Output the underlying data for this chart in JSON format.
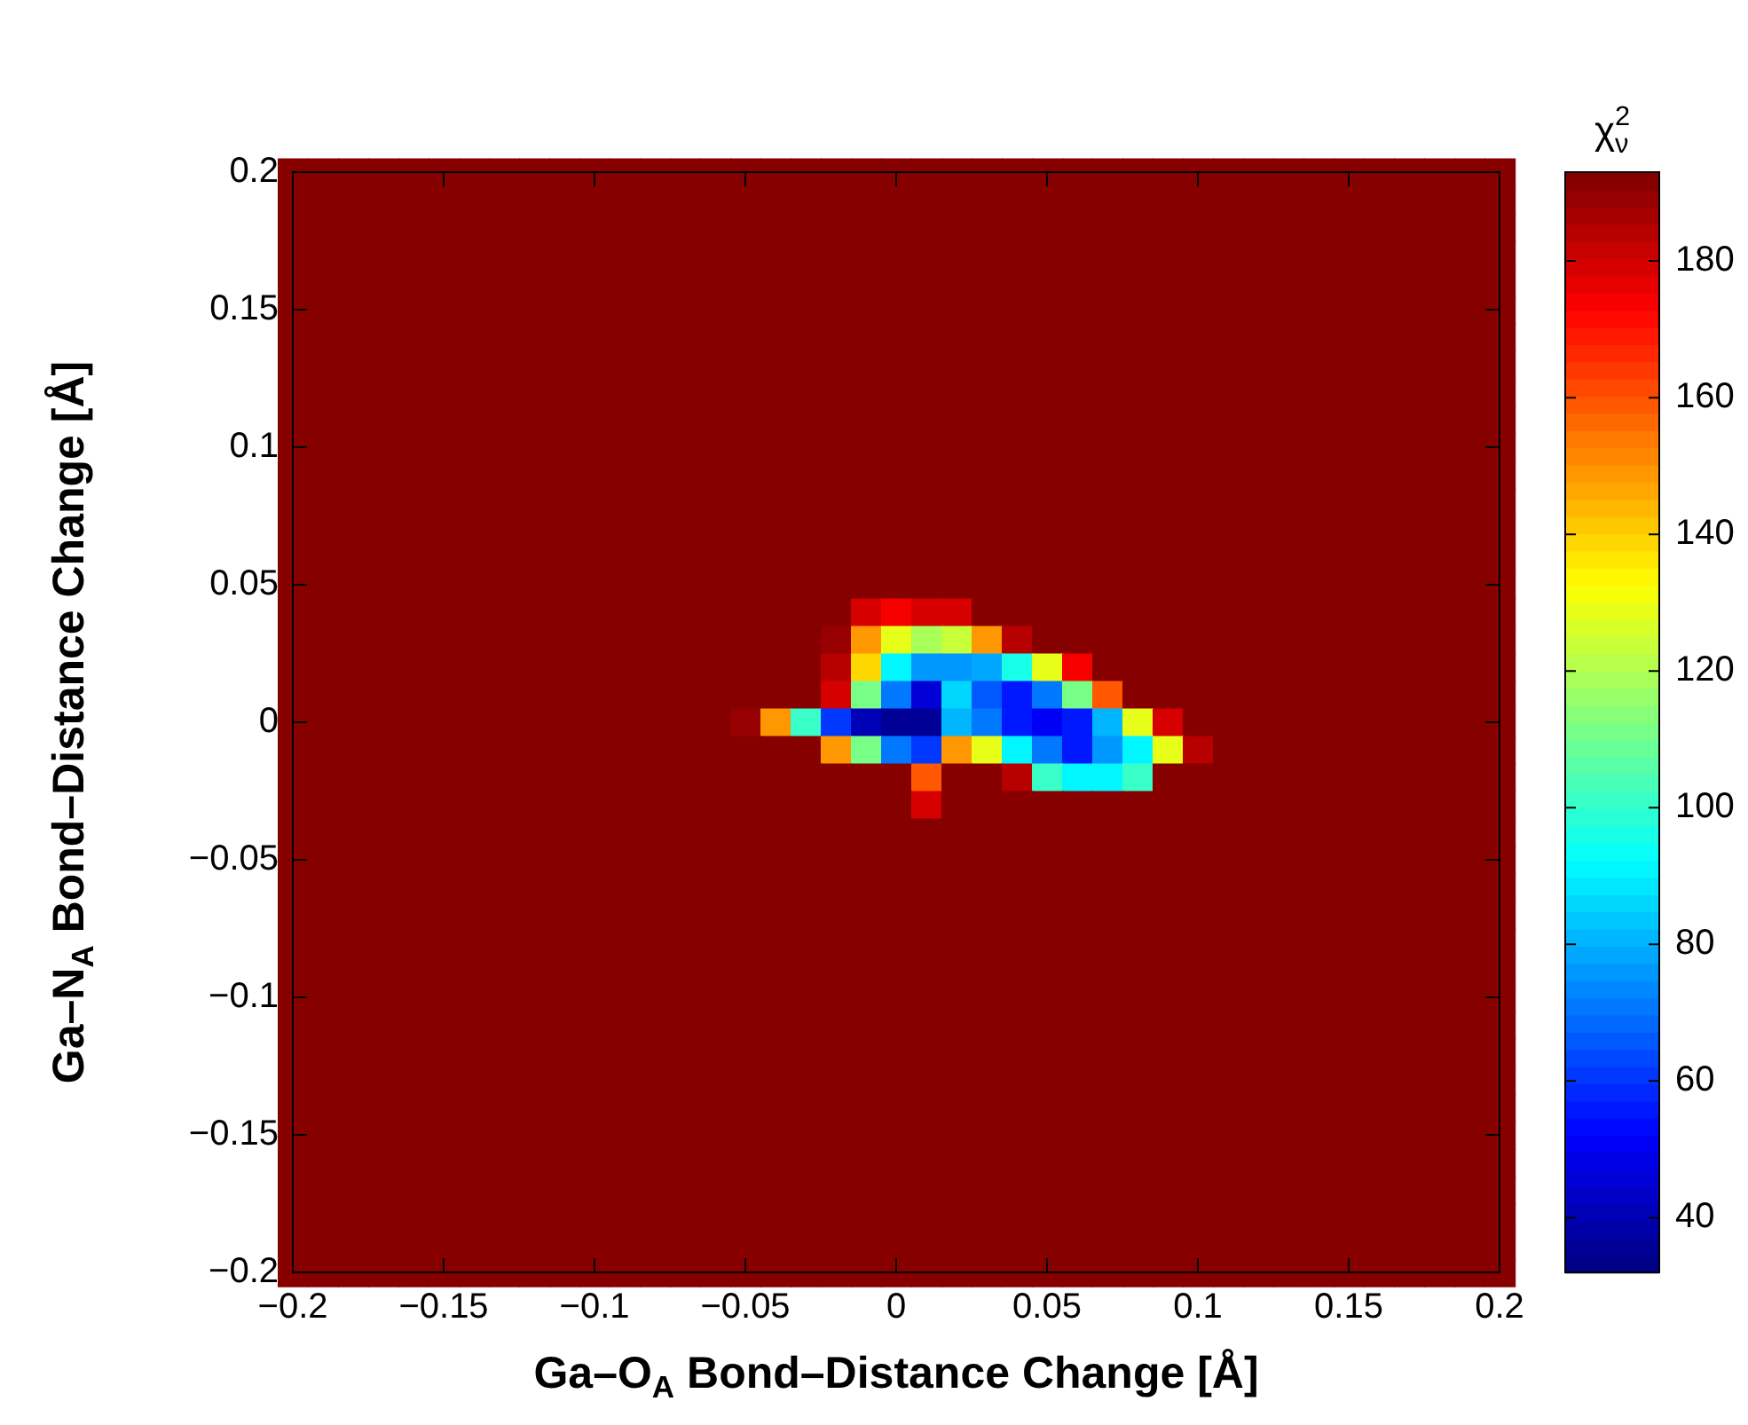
{
  "chart_data": {
    "type": "heatmap",
    "xlabel": "Ga–O$_{A}$ Bond–Distance Change [Å]",
    "ylabel": "Ga–N$_{A}$ Bond–Distance Change [Å]",
    "clabel": "χ$^{2}$$_{ν}$",
    "x": [
      -0.2,
      -0.19,
      -0.18,
      -0.17,
      -0.16,
      -0.15,
      -0.14,
      -0.13,
      -0.12,
      -0.11,
      -0.1,
      -0.09,
      -0.08,
      -0.07,
      -0.06,
      -0.05,
      -0.04,
      -0.03,
      -0.02,
      -0.01,
      0,
      0.01,
      0.02,
      0.03,
      0.04,
      0.05,
      0.06,
      0.07,
      0.08,
      0.09,
      0.1,
      0.11,
      0.12,
      0.13,
      0.14,
      0.15,
      0.16,
      0.17,
      0.18,
      0.19,
      0.2
    ],
    "y": [
      0.2,
      0.19,
      0.18,
      0.17,
      0.16,
      0.15,
      0.14,
      0.13,
      0.12,
      0.11,
      0.1,
      0.09,
      0.08,
      0.07,
      0.06,
      0.05,
      0.04,
      0.03,
      0.02,
      0.01,
      0,
      -0.01,
      -0.02,
      -0.03,
      -0.04,
      -0.05,
      -0.06,
      -0.07,
      -0.08,
      -0.09,
      -0.1,
      -0.11,
      -0.12,
      -0.13,
      -0.14,
      -0.15,
      -0.16,
      -0.17,
      -0.18,
      -0.19,
      -0.2
    ],
    "xlim": [
      -0.2,
      0.2
    ],
    "ylim": [
      -0.2,
      0.2
    ],
    "xticks": [
      {
        "value": -0.2,
        "label": "−0.2"
      },
      {
        "value": -0.15,
        "label": "−0.15"
      },
      {
        "value": -0.1,
        "label": "−0.1"
      },
      {
        "value": -0.05,
        "label": "−0.05"
      },
      0,
      0.05,
      0.1,
      0.15,
      0.2
    ],
    "yticks": [
      {
        "value": -0.2,
        "label": "−0.2"
      },
      {
        "value": -0.15,
        "label": "−0.15"
      },
      {
        "value": -0.1,
        "label": "−0.1"
      },
      {
        "value": -0.05,
        "label": "−0.05"
      },
      0,
      0.05,
      0.1,
      0.15,
      0.2
    ],
    "clim": [
      32,
      193
    ],
    "cticks": [
      40,
      60,
      80,
      100,
      120,
      140,
      160,
      180
    ],
    "cells": [
      [
        193,
        193,
        193,
        193,
        193,
        193,
        193,
        193,
        193,
        193,
        193,
        193,
        193,
        193,
        193,
        193,
        193,
        193,
        193,
        193,
        193,
        193,
        193,
        193,
        193,
        193,
        193,
        193,
        193,
        193,
        193,
        193,
        193,
        193,
        193,
        193,
        193,
        193,
        193,
        193,
        193
      ],
      [
        193,
        193,
        193,
        193,
        193,
        193,
        193,
        193,
        193,
        193,
        193,
        193,
        193,
        193,
        193,
        193,
        193,
        193,
        193,
        193,
        193,
        193,
        193,
        193,
        193,
        193,
        193,
        193,
        193,
        193,
        193,
        193,
        193,
        193,
        193,
        193,
        193,
        193,
        193,
        193,
        193
      ],
      [
        193,
        193,
        193,
        193,
        193,
        193,
        193,
        193,
        193,
        193,
        193,
        193,
        193,
        193,
        193,
        193,
        193,
        193,
        193,
        193,
        193,
        193,
        193,
        193,
        193,
        193,
        193,
        193,
        193,
        193,
        193,
        193,
        193,
        193,
        193,
        193,
        193,
        193,
        193,
        193,
        193
      ],
      [
        193,
        193,
        193,
        193,
        193,
        193,
        193,
        193,
        193,
        193,
        193,
        193,
        193,
        193,
        193,
        193,
        193,
        193,
        193,
        193,
        193,
        193,
        193,
        193,
        193,
        193,
        193,
        193,
        193,
        193,
        193,
        193,
        193,
        193,
        193,
        193,
        193,
        193,
        193,
        193,
        193
      ],
      [
        193,
        193,
        193,
        193,
        193,
        193,
        193,
        193,
        193,
        193,
        193,
        193,
        193,
        193,
        193,
        193,
        193,
        193,
        193,
        193,
        193,
        193,
        193,
        193,
        193,
        193,
        193,
        193,
        193,
        193,
        193,
        193,
        193,
        193,
        193,
        193,
        193,
        193,
        193,
        193,
        193
      ],
      [
        193,
        193,
        193,
        193,
        193,
        193,
        193,
        193,
        193,
        193,
        193,
        193,
        193,
        193,
        193,
        193,
        193,
        193,
        193,
        193,
        193,
        193,
        193,
        193,
        193,
        193,
        193,
        193,
        193,
        193,
        193,
        193,
        193,
        193,
        193,
        193,
        193,
        193,
        193,
        193,
        193
      ],
      [
        193,
        193,
        193,
        193,
        193,
        193,
        193,
        193,
        193,
        193,
        193,
        193,
        193,
        193,
        193,
        193,
        193,
        193,
        193,
        193,
        193,
        193,
        193,
        193,
        193,
        193,
        193,
        193,
        193,
        193,
        193,
        193,
        193,
        193,
        193,
        193,
        193,
        193,
        193,
        193,
        193
      ],
      [
        193,
        193,
        193,
        193,
        193,
        193,
        193,
        193,
        193,
        193,
        193,
        193,
        193,
        193,
        193,
        193,
        193,
        193,
        193,
        193,
        193,
        193,
        193,
        193,
        193,
        193,
        193,
        193,
        193,
        193,
        193,
        193,
        193,
        193,
        193,
        193,
        193,
        193,
        193,
        193,
        193
      ],
      [
        193,
        193,
        193,
        193,
        193,
        193,
        193,
        193,
        193,
        193,
        193,
        193,
        193,
        193,
        193,
        193,
        193,
        193,
        193,
        193,
        193,
        193,
        193,
        193,
        193,
        193,
        193,
        193,
        193,
        193,
        193,
        193,
        193,
        193,
        193,
        193,
        193,
        193,
        193,
        193,
        193
      ],
      [
        193,
        193,
        193,
        193,
        193,
        193,
        193,
        193,
        193,
        193,
        193,
        193,
        193,
        193,
        193,
        193,
        193,
        193,
        193,
        193,
        193,
        193,
        193,
        193,
        193,
        193,
        193,
        193,
        193,
        193,
        193,
        193,
        193,
        193,
        193,
        193,
        193,
        193,
        193,
        193,
        193
      ],
      [
        193,
        193,
        193,
        193,
        193,
        193,
        193,
        193,
        193,
        193,
        193,
        193,
        193,
        193,
        193,
        193,
        193,
        193,
        193,
        193,
        193,
        193,
        193,
        193,
        193,
        193,
        193,
        193,
        193,
        193,
        193,
        193,
        193,
        193,
        193,
        193,
        193,
        193,
        193,
        193,
        193
      ],
      [
        193,
        193,
        193,
        193,
        193,
        193,
        193,
        193,
        193,
        193,
        193,
        193,
        193,
        193,
        193,
        193,
        193,
        193,
        193,
        193,
        193,
        193,
        193,
        193,
        193,
        193,
        193,
        193,
        193,
        193,
        193,
        193,
        193,
        193,
        193,
        193,
        193,
        193,
        193,
        193,
        193
      ],
      [
        193,
        193,
        193,
        193,
        193,
        193,
        193,
        193,
        193,
        193,
        193,
        193,
        193,
        193,
        193,
        193,
        193,
        193,
        193,
        193,
        193,
        193,
        193,
        193,
        193,
        193,
        193,
        193,
        193,
        193,
        193,
        193,
        193,
        193,
        193,
        193,
        193,
        193,
        193,
        193,
        193
      ],
      [
        193,
        193,
        193,
        193,
        193,
        193,
        193,
        193,
        193,
        193,
        193,
        193,
        193,
        193,
        193,
        193,
        193,
        193,
        193,
        193,
        193,
        193,
        193,
        193,
        193,
        193,
        193,
        193,
        193,
        193,
        193,
        193,
        193,
        193,
        193,
        193,
        193,
        193,
        193,
        193,
        193
      ],
      [
        193,
        193,
        193,
        193,
        193,
        193,
        193,
        193,
        193,
        193,
        193,
        193,
        193,
        193,
        193,
        193,
        193,
        193,
        193,
        193,
        193,
        193,
        193,
        193,
        193,
        193,
        193,
        193,
        193,
        193,
        193,
        193,
        193,
        193,
        193,
        193,
        193,
        193,
        193,
        193,
        193
      ],
      [
        193,
        193,
        193,
        193,
        193,
        193,
        193,
        193,
        193,
        193,
        193,
        193,
        193,
        193,
        193,
        193,
        193,
        193,
        193,
        193,
        193,
        193,
        193,
        193,
        193,
        193,
        193,
        193,
        193,
        193,
        193,
        193,
        193,
        193,
        193,
        193,
        193,
        193,
        193,
        193,
        193
      ],
      [
        193,
        193,
        193,
        193,
        193,
        193,
        193,
        193,
        193,
        193,
        193,
        193,
        193,
        193,
        193,
        193,
        193,
        193,
        193,
        180,
        175,
        178,
        180,
        193,
        193,
        193,
        193,
        193,
        193,
        193,
        193,
        193,
        193,
        193,
        193,
        193,
        193,
        193,
        193,
        193,
        193
      ],
      [
        193,
        193,
        193,
        193,
        193,
        193,
        193,
        193,
        193,
        193,
        193,
        193,
        193,
        193,
        193,
        193,
        193,
        193,
        190,
        150,
        130,
        120,
        125,
        150,
        185,
        193,
        193,
        193,
        193,
        193,
        193,
        193,
        193,
        193,
        193,
        193,
        193,
        193,
        193,
        193,
        193
      ],
      [
        193,
        193,
        193,
        193,
        193,
        193,
        193,
        193,
        193,
        193,
        193,
        193,
        193,
        193,
        193,
        193,
        193,
        193,
        185,
        140,
        90,
        75,
        75,
        78,
        95,
        130,
        175,
        193,
        193,
        193,
        193,
        193,
        193,
        193,
        193,
        193,
        193,
        193,
        193,
        193,
        193
      ],
      [
        193,
        193,
        193,
        193,
        193,
        193,
        193,
        193,
        193,
        193,
        193,
        193,
        193,
        193,
        193,
        193,
        193,
        193,
        180,
        110,
        70,
        45,
        85,
        65,
        55,
        70,
        110,
        160,
        193,
        193,
        193,
        193,
        193,
        193,
        193,
        193,
        193,
        193,
        193,
        193,
        193
      ],
      [
        193,
        193,
        193,
        193,
        193,
        193,
        193,
        193,
        193,
        193,
        193,
        193,
        193,
        193,
        193,
        190,
        150,
        100,
        60,
        40,
        35,
        35,
        80,
        70,
        55,
        50,
        55,
        80,
        130,
        180,
        193,
        193,
        193,
        193,
        193,
        193,
        193,
        193,
        193,
        193,
        193
      ],
      [
        193,
        193,
        193,
        193,
        193,
        193,
        193,
        193,
        193,
        193,
        193,
        193,
        193,
        193,
        193,
        193,
        193,
        193,
        150,
        110,
        70,
        60,
        150,
        130,
        90,
        70,
        55,
        75,
        90,
        130,
        185,
        193,
        193,
        193,
        193,
        193,
        193,
        193,
        193,
        193,
        193
      ],
      [
        193,
        193,
        193,
        193,
        193,
        193,
        193,
        193,
        193,
        193,
        193,
        193,
        193,
        193,
        193,
        193,
        193,
        193,
        193,
        193,
        193,
        160,
        193,
        193,
        185,
        100,
        90,
        90,
        100,
        193,
        193,
        193,
        193,
        193,
        193,
        193,
        193,
        193,
        193,
        193,
        193
      ],
      [
        193,
        193,
        193,
        193,
        193,
        193,
        193,
        193,
        193,
        193,
        193,
        193,
        193,
        193,
        193,
        193,
        193,
        193,
        193,
        193,
        193,
        180,
        193,
        193,
        193,
        193,
        193,
        193,
        193,
        193,
        193,
        193,
        193,
        193,
        193,
        193,
        193,
        193,
        193,
        193,
        193
      ],
      [
        193,
        193,
        193,
        193,
        193,
        193,
        193,
        193,
        193,
        193,
        193,
        193,
        193,
        193,
        193,
        193,
        193,
        193,
        193,
        193,
        193,
        193,
        193,
        193,
        193,
        193,
        193,
        193,
        193,
        193,
        193,
        193,
        193,
        193,
        193,
        193,
        193,
        193,
        193,
        193,
        193
      ],
      [
        193,
        193,
        193,
        193,
        193,
        193,
        193,
        193,
        193,
        193,
        193,
        193,
        193,
        193,
        193,
        193,
        193,
        193,
        193,
        193,
        193,
        193,
        193,
        193,
        193,
        193,
        193,
        193,
        193,
        193,
        193,
        193,
        193,
        193,
        193,
        193,
        193,
        193,
        193,
        193,
        193
      ],
      [
        193,
        193,
        193,
        193,
        193,
        193,
        193,
        193,
        193,
        193,
        193,
        193,
        193,
        193,
        193,
        193,
        193,
        193,
        193,
        193,
        193,
        193,
        193,
        193,
        193,
        193,
        193,
        193,
        193,
        193,
        193,
        193,
        193,
        193,
        193,
        193,
        193,
        193,
        193,
        193,
        193
      ],
      [
        193,
        193,
        193,
        193,
        193,
        193,
        193,
        193,
        193,
        193,
        193,
        193,
        193,
        193,
        193,
        193,
        193,
        193,
        193,
        193,
        193,
        193,
        193,
        193,
        193,
        193,
        193,
        193,
        193,
        193,
        193,
        193,
        193,
        193,
        193,
        193,
        193,
        193,
        193,
        193,
        193
      ],
      [
        193,
        193,
        193,
        193,
        193,
        193,
        193,
        193,
        193,
        193,
        193,
        193,
        193,
        193,
        193,
        193,
        193,
        193,
        193,
        193,
        193,
        193,
        193,
        193,
        193,
        193,
        193,
        193,
        193,
        193,
        193,
        193,
        193,
        193,
        193,
        193,
        193,
        193,
        193,
        193,
        193
      ],
      [
        193,
        193,
        193,
        193,
        193,
        193,
        193,
        193,
        193,
        193,
        193,
        193,
        193,
        193,
        193,
        193,
        193,
        193,
        193,
        193,
        193,
        193,
        193,
        193,
        193,
        193,
        193,
        193,
        193,
        193,
        193,
        193,
        193,
        193,
        193,
        193,
        193,
        193,
        193,
        193,
        193
      ],
      [
        193,
        193,
        193,
        193,
        193,
        193,
        193,
        193,
        193,
        193,
        193,
        193,
        193,
        193,
        193,
        193,
        193,
        193,
        193,
        193,
        193,
        193,
        193,
        193,
        193,
        193,
        193,
        193,
        193,
        193,
        193,
        193,
        193,
        193,
        193,
        193,
        193,
        193,
        193,
        193,
        193
      ],
      [
        193,
        193,
        193,
        193,
        193,
        193,
        193,
        193,
        193,
        193,
        193,
        193,
        193,
        193,
        193,
        193,
        193,
        193,
        193,
        193,
        193,
        193,
        193,
        193,
        193,
        193,
        193,
        193,
        193,
        193,
        193,
        193,
        193,
        193,
        193,
        193,
        193,
        193,
        193,
        193,
        193
      ],
      [
        193,
        193,
        193,
        193,
        193,
        193,
        193,
        193,
        193,
        193,
        193,
        193,
        193,
        193,
        193,
        193,
        193,
        193,
        193,
        193,
        193,
        193,
        193,
        193,
        193,
        193,
        193,
        193,
        193,
        193,
        193,
        193,
        193,
        193,
        193,
        193,
        193,
        193,
        193,
        193,
        193
      ],
      [
        193,
        193,
        193,
        193,
        193,
        193,
        193,
        193,
        193,
        193,
        193,
        193,
        193,
        193,
        193,
        193,
        193,
        193,
        193,
        193,
        193,
        193,
        193,
        193,
        193,
        193,
        193,
        193,
        193,
        193,
        193,
        193,
        193,
        193,
        193,
        193,
        193,
        193,
        193,
        193,
        193
      ],
      [
        193,
        193,
        193,
        193,
        193,
        193,
        193,
        193,
        193,
        193,
        193,
        193,
        193,
        193,
        193,
        193,
        193,
        193,
        193,
        193,
        193,
        193,
        193,
        193,
        193,
        193,
        193,
        193,
        193,
        193,
        193,
        193,
        193,
        193,
        193,
        193,
        193,
        193,
        193,
        193,
        193
      ],
      [
        193,
        193,
        193,
        193,
        193,
        193,
        193,
        193,
        193,
        193,
        193,
        193,
        193,
        193,
        193,
        193,
        193,
        193,
        193,
        193,
        193,
        193,
        193,
        193,
        193,
        193,
        193,
        193,
        193,
        193,
        193,
        193,
        193,
        193,
        193,
        193,
        193,
        193,
        193,
        193,
        193
      ],
      [
        193,
        193,
        193,
        193,
        193,
        193,
        193,
        193,
        193,
        193,
        193,
        193,
        193,
        193,
        193,
        193,
        193,
        193,
        193,
        193,
        193,
        193,
        193,
        193,
        193,
        193,
        193,
        193,
        193,
        193,
        193,
        193,
        193,
        193,
        193,
        193,
        193,
        193,
        193,
        193,
        193
      ],
      [
        193,
        193,
        193,
        193,
        193,
        193,
        193,
        193,
        193,
        193,
        193,
        193,
        193,
        193,
        193,
        193,
        193,
        193,
        193,
        193,
        193,
        193,
        193,
        193,
        193,
        193,
        193,
        193,
        193,
        193,
        193,
        193,
        193,
        193,
        193,
        193,
        193,
        193,
        193,
        193,
        193
      ],
      [
        193,
        193,
        193,
        193,
        193,
        193,
        193,
        193,
        193,
        193,
        193,
        193,
        193,
        193,
        193,
        193,
        193,
        193,
        193,
        193,
        193,
        193,
        193,
        193,
        193,
        193,
        193,
        193,
        193,
        193,
        193,
        193,
        193,
        193,
        193,
        193,
        193,
        193,
        193,
        193,
        193
      ],
      [
        193,
        193,
        193,
        193,
        193,
        193,
        193,
        193,
        193,
        193,
        193,
        193,
        193,
        193,
        193,
        193,
        193,
        193,
        193,
        193,
        193,
        193,
        193,
        193,
        193,
        193,
        193,
        193,
        193,
        193,
        193,
        193,
        193,
        193,
        193,
        193,
        193,
        193,
        193,
        193,
        193
      ],
      [
        193,
        193,
        193,
        193,
        193,
        193,
        193,
        193,
        193,
        193,
        193,
        193,
        193,
        193,
        193,
        193,
        193,
        193,
        193,
        193,
        193,
        193,
        193,
        193,
        193,
        193,
        193,
        193,
        193,
        193,
        193,
        193,
        193,
        193,
        193,
        193,
        193,
        193,
        193,
        193,
        193
      ]
    ]
  }
}
